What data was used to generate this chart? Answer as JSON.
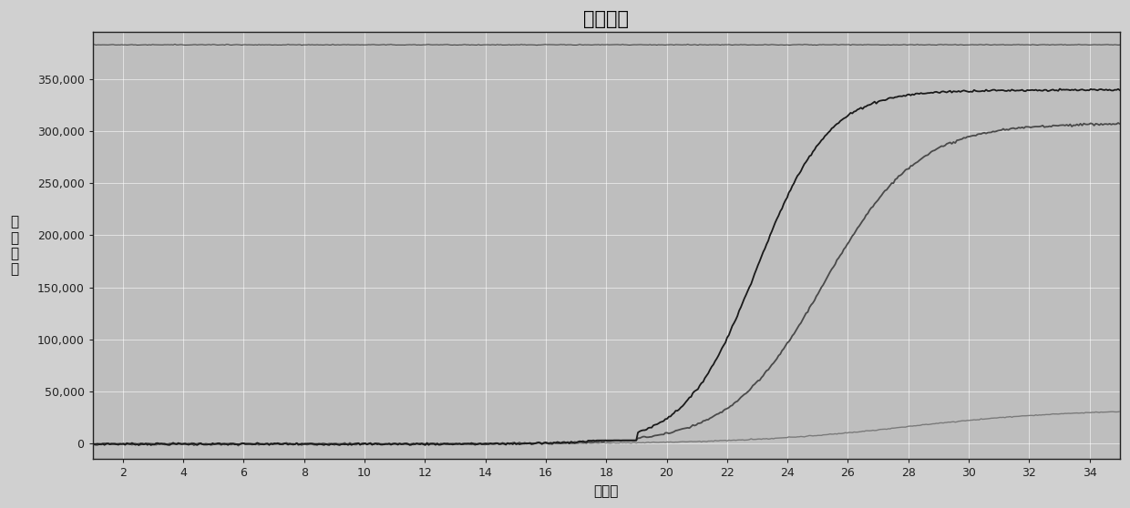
{
  "title": "扩增曲线",
  "xlabel": "循环数",
  "ylabel": "荧\n光\n信\n号",
  "xlim": [
    1,
    35
  ],
  "ylim": [
    -15000,
    395000
  ],
  "yticks": [
    0,
    50000,
    100000,
    150000,
    200000,
    250000,
    300000,
    350000
  ],
  "xticks": [
    2,
    4,
    6,
    8,
    10,
    12,
    14,
    16,
    18,
    20,
    22,
    24,
    26,
    28,
    30,
    32,
    34
  ],
  "background_color": "#d0d0d0",
  "plot_bg_color": "#bebebe",
  "line1_color": "#1a1a1a",
  "line2_color": "#4a4a4a",
  "line3_color": "#7a7a7a",
  "top_line_color": "#333333",
  "curve1_plateau": 340000,
  "curve1_midpoint": 23.0,
  "curve1_steepness": 0.85,
  "curve2_plateau": 308000,
  "curve2_midpoint": 25.2,
  "curve2_steepness": 0.65,
  "curve3_plateau": 33000,
  "curve3_midpoint": 28.0,
  "curve3_steepness": 0.38,
  "grid_color": "#ffffff",
  "grid_alpha": 0.65,
  "title_fontsize": 15,
  "label_fontsize": 11,
  "tick_fontsize": 9
}
